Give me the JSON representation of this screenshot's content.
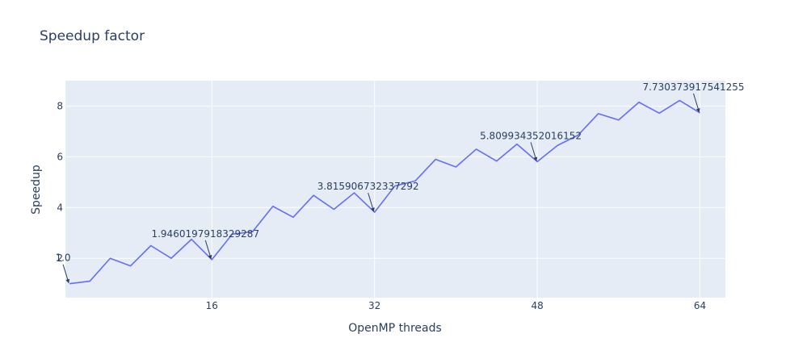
{
  "chart_data": {
    "type": "line",
    "title": "Speedup factor",
    "xlabel": "OpenMP threads",
    "ylabel": "Speedup",
    "xlim": [
      1.6,
      66.5
    ],
    "ylim": [
      0.45,
      9.0
    ],
    "xticks": [
      16,
      32,
      48,
      64
    ],
    "yticks": [
      2,
      4,
      6,
      8
    ],
    "grid": true,
    "series": [
      {
        "color": "#636efa",
        "x": [
          2,
          4,
          6,
          8,
          10,
          12,
          14,
          16,
          18,
          20,
          22,
          24,
          26,
          28,
          30,
          32,
          34,
          36,
          38,
          40,
          42,
          44,
          46,
          48,
          50,
          52,
          54,
          56,
          58,
          60,
          62,
          64
        ],
        "y": [
          1.0,
          1.1,
          2.0,
          1.7,
          2.5,
          2.0,
          2.75,
          1.9460197918329287,
          2.95,
          3.05,
          4.05,
          3.62,
          4.48,
          3.93,
          4.58,
          3.815906732337292,
          4.85,
          5.05,
          5.9,
          5.6,
          6.3,
          5.83,
          6.5,
          5.809934352016152,
          6.45,
          6.85,
          7.7,
          7.45,
          8.15,
          7.72,
          8.22,
          7.730373917541255
        ]
      }
    ],
    "annotations": [
      {
        "x": 2,
        "y": 1.0,
        "text": "1.0"
      },
      {
        "x": 16,
        "y": 1.9460197918329287,
        "text": "1.9460197918329287"
      },
      {
        "x": 32,
        "y": 3.815906732337292,
        "text": "3.815906732337292"
      },
      {
        "x": 48,
        "y": 5.809934352016152,
        "text": "5.809934352016152"
      },
      {
        "x": 64,
        "y": 7.730373917541255,
        "text": "7.730373917541255"
      }
    ]
  }
}
